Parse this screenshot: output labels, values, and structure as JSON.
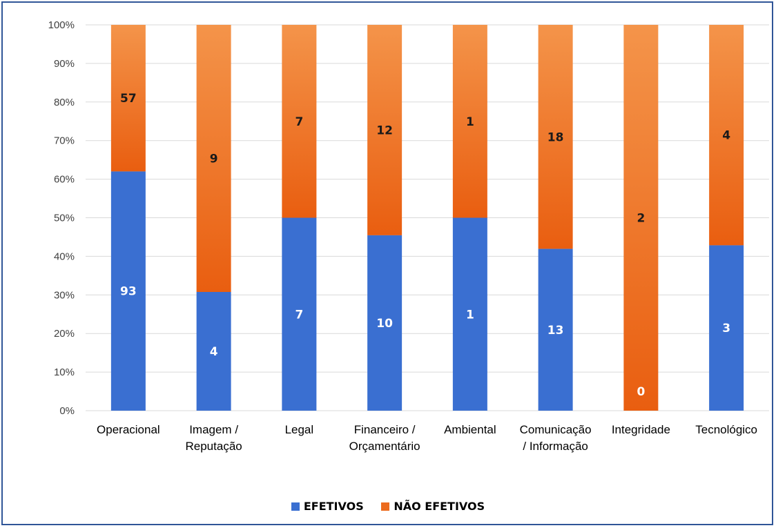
{
  "chart_data": {
    "type": "bar",
    "stacked": true,
    "normalized": true,
    "categories": [
      [
        "Operacional"
      ],
      [
        "Imagem /",
        "Reputação"
      ],
      [
        "Legal"
      ],
      [
        "Financeiro /",
        "Orçamentário"
      ],
      [
        "Ambiental"
      ],
      [
        "Comunicação",
        "/ Informação"
      ],
      [
        "Integridade"
      ],
      [
        "Tecnológico"
      ]
    ],
    "series": [
      {
        "name": "EFETIVOS",
        "color": "#3a6fd1",
        "values": [
          93,
          4,
          7,
          10,
          1,
          13,
          0,
          3
        ]
      },
      {
        "name": "NÃO EFETIVOS",
        "color": "#ec6b1e",
        "values": [
          57,
          9,
          7,
          12,
          1,
          18,
          2,
          4
        ]
      }
    ],
    "yticks": [
      "0%",
      "10%",
      "20%",
      "30%",
      "40%",
      "50%",
      "60%",
      "70%",
      "80%",
      "90%",
      "100%"
    ],
    "ylim": [
      0,
      100
    ],
    "grid": true,
    "legend_position": "bottom"
  }
}
